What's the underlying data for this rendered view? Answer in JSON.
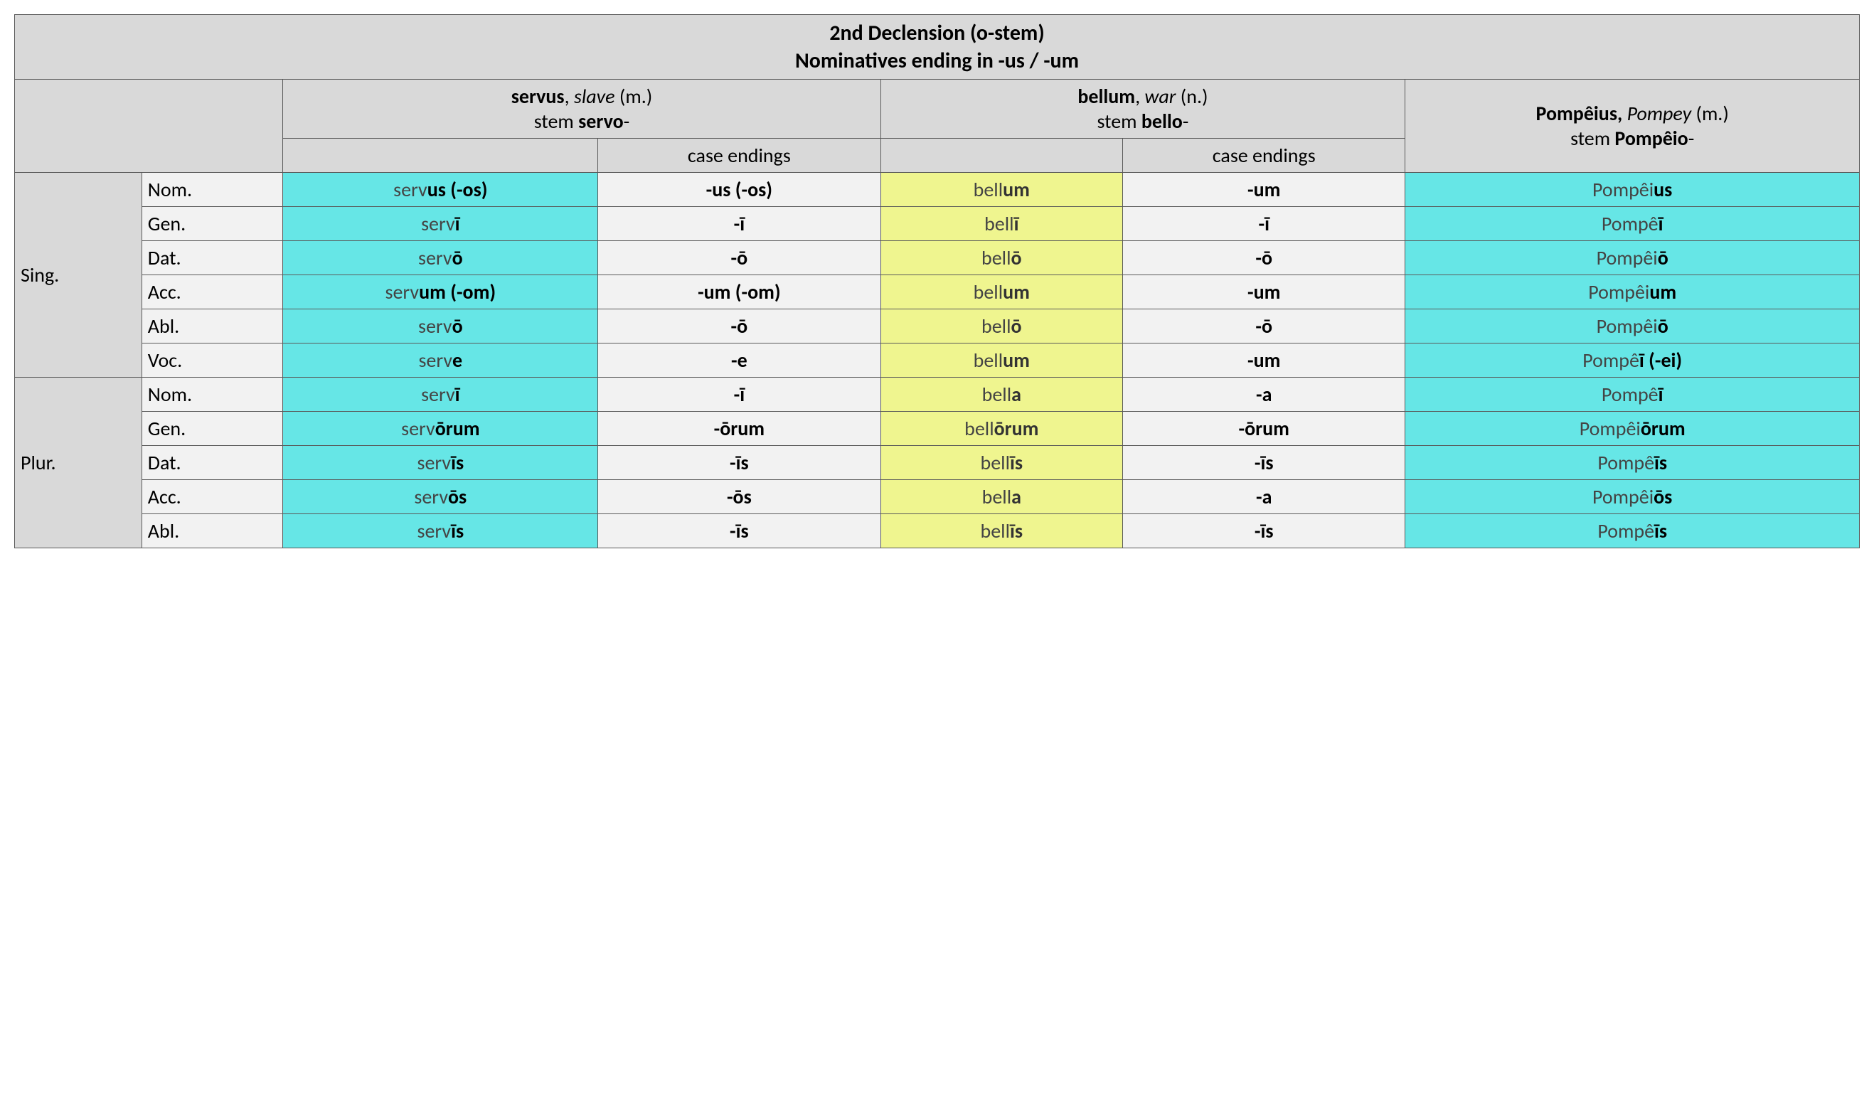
{
  "title_line1": "2nd Declension (o-stem)",
  "title_line2": "Nominatives ending in -us / -um",
  "columns": {
    "servus": {
      "word": "servus",
      "gloss": "slave",
      "gender": "(m.)",
      "stem_label": "stem ",
      "stem": "servo",
      "stem_suffix": "-"
    },
    "bellum": {
      "word": "bellum",
      "gloss": "war",
      "gender": "(n.)",
      "stem_label": "stem ",
      "stem": "bello",
      "stem_suffix": "-"
    },
    "pompeius": {
      "word": "Pompêius,",
      "gloss": "Pompey",
      "gender": "(m.)",
      "stem_label": "stem ",
      "stem": "Pompêio",
      "stem_suffix": "-"
    }
  },
  "case_endings_label": "case endings",
  "numbers": {
    "sing": "Sing.",
    "plur": "Plur."
  },
  "cases_sing": [
    "Nom.",
    "Gen.",
    "Dat.",
    "Acc.",
    "Abl.",
    "Voc."
  ],
  "cases_plur": [
    "Nom.",
    "Gen.",
    "Dat.",
    "Acc.",
    "Abl."
  ],
  "colors": {
    "border": "#595959",
    "header_bg": "#d9d9d9",
    "light_gray": "#f2f2f2",
    "cyan": "#66e6e6",
    "yellow": "#eff58f"
  },
  "rows": [
    {
      "num": "sing",
      "case": "Nom.",
      "servus_stem": "serv",
      "servus_end": "us",
      "servus_paren": " (-os)",
      "servend_main": "-us",
      "servend_paren": " (-os)",
      "bellum_stem": "bell",
      "bellum_end": "um",
      "bellend": "-um",
      "pomp_stem": "Pompêi",
      "pomp_end": "us",
      "pomp_paren": ""
    },
    {
      "num": "sing",
      "case": "Gen.",
      "servus_stem": "serv",
      "servus_end": "ī",
      "servus_paren": "",
      "servend_main": "-ī",
      "servend_paren": "",
      "bellum_stem": "bell",
      "bellum_end": "ī",
      "bellend": "-ī",
      "pomp_stem": "Pompê",
      "pomp_end": "ī",
      "pomp_paren": ""
    },
    {
      "num": "sing",
      "case": "Dat.",
      "servus_stem": "serv",
      "servus_end": "ō",
      "servus_paren": "",
      "servend_main": "-ō",
      "servend_paren": "",
      "bellum_stem": "bell",
      "bellum_end": "ō",
      "bellend": "-ō",
      "pomp_stem": "Pompêi",
      "pomp_end": "ō",
      "pomp_paren": ""
    },
    {
      "num": "sing",
      "case": "Acc.",
      "servus_stem": "serv",
      "servus_end": "um",
      "servus_paren": " (-om)",
      "servend_main": "-um",
      "servend_paren": " (-om)",
      "bellum_stem": "bell",
      "bellum_end": "um",
      "bellend": "-um",
      "pomp_stem": "Pompêi",
      "pomp_end": "um",
      "pomp_paren": ""
    },
    {
      "num": "sing",
      "case": "Abl.",
      "servus_stem": "serv",
      "servus_end": "ō",
      "servus_paren": "",
      "servend_main": "-ō",
      "servend_paren": "",
      "bellum_stem": "bell",
      "bellum_end": "ō",
      "bellend": "-ō",
      "pomp_stem": "Pompêi",
      "pomp_end": "ō",
      "pomp_paren": ""
    },
    {
      "num": "sing",
      "case": "Voc.",
      "servus_stem": "serv",
      "servus_end": "e",
      "servus_paren": "",
      "servend_main": "-e",
      "servend_paren": "",
      "bellum_stem": "bell",
      "bellum_end": "um",
      "bellend": "-um",
      "pomp_stem": "Pompê",
      "pomp_end": "ī",
      "pomp_paren": " (-ei)"
    },
    {
      "num": "plur",
      "case": "Nom.",
      "servus_stem": "serv",
      "servus_end": "ī",
      "servus_paren": "",
      "servend_main": "-ī",
      "servend_paren": "",
      "bellum_stem": "bell",
      "bellum_end": "a",
      "bellend": "-a",
      "pomp_stem": "Pompê",
      "pomp_end": "ī",
      "pomp_paren": ""
    },
    {
      "num": "plur",
      "case": "Gen.",
      "servus_stem": "serv",
      "servus_end": "ōrum",
      "servus_paren": "",
      "servend_main": "-ōrum",
      "servend_paren": "",
      "bellum_stem": "bell",
      "bellum_end": "ōrum",
      "bellend": "-ōrum",
      "pomp_stem": "Pompêi",
      "pomp_end": "ōrum",
      "pomp_paren": ""
    },
    {
      "num": "plur",
      "case": "Dat.",
      "servus_stem": "serv",
      "servus_end": "īs",
      "servus_paren": "",
      "servend_main": "-īs",
      "servend_paren": "",
      "bellum_stem": "bell",
      "bellum_end": "īs",
      "bellend": "-īs",
      "pomp_stem": "Pompê",
      "pomp_end": "īs",
      "pomp_paren": ""
    },
    {
      "num": "plur",
      "case": "Acc.",
      "servus_stem": "serv",
      "servus_end": "ōs",
      "servus_paren": "",
      "servend_main": "-ōs",
      "servend_paren": "",
      "bellum_stem": "bell",
      "bellum_end": "a",
      "bellend": "-a",
      "pomp_stem": "Pompêi",
      "pomp_end": "ōs",
      "pomp_paren": ""
    },
    {
      "num": "plur",
      "case": "Abl.",
      "servus_stem": "serv",
      "servus_end": "īs",
      "servus_paren": "",
      "servend_main": "-īs",
      "servend_paren": "",
      "bellum_stem": "bell",
      "bellum_end": "īs",
      "bellend": "-īs",
      "pomp_stem": "Pompê",
      "pomp_end": "īs",
      "pomp_paren": ""
    }
  ]
}
